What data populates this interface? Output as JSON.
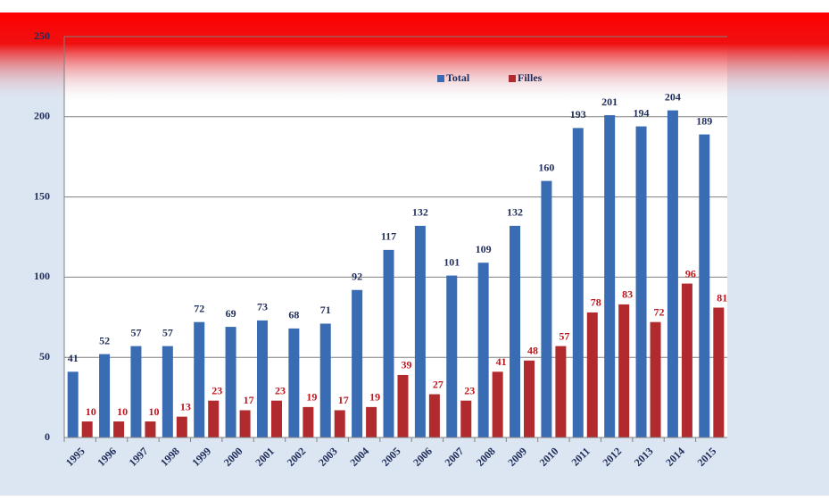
{
  "chart_data": {
    "type": "bar",
    "categories": [
      "1995",
      "1996",
      "1997",
      "1998",
      "1999",
      "2000",
      "2001",
      "2002",
      "2003",
      "2004",
      "2005",
      "2006",
      "2007",
      "2008",
      "2009",
      "2010",
      "2011",
      "2012",
      "2013",
      "2014",
      "2015"
    ],
    "series": [
      {
        "name": "Total",
        "color": "#3a6cb4",
        "label_color": "#1f2d5a",
        "values": [
          41,
          52,
          57,
          57,
          72,
          69,
          73,
          68,
          71,
          92,
          117,
          132,
          101,
          109,
          132,
          160,
          193,
          201,
          194,
          204,
          189
        ]
      },
      {
        "name": "Filles",
        "color": "#b02a2e",
        "label_color": "#c0141c",
        "values": [
          10,
          10,
          10,
          13,
          23,
          17,
          23,
          19,
          17,
          19,
          39,
          27,
          23,
          41,
          48,
          57,
          78,
          83,
          72,
          96,
          81
        ]
      }
    ],
    "ylim": [
      0,
      250
    ],
    "yticks": [
      0,
      50,
      100,
      150,
      200,
      250
    ],
    "grid": true
  }
}
